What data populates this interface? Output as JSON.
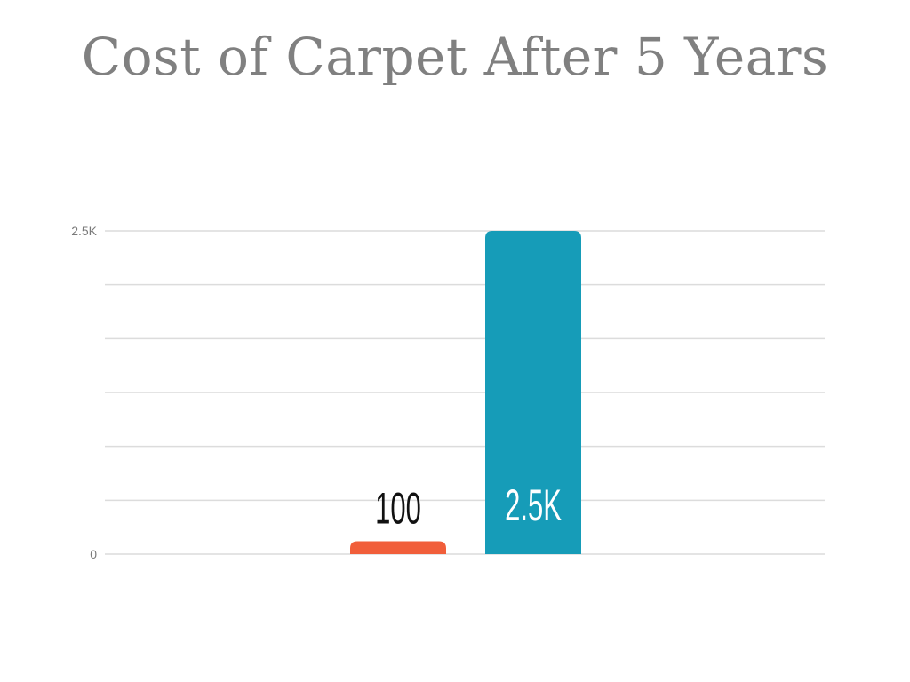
{
  "chart_data": {
    "type": "bar",
    "title": "Cost of Carpet After 5 Years",
    "categories": [
      "",
      ""
    ],
    "values": [
      100,
      2500
    ],
    "data_labels": [
      "100",
      "2.5K"
    ],
    "colors": [
      "#f15e3a",
      "#169cb8"
    ],
    "label_colors": [
      "#111111",
      "#ffffff"
    ],
    "ylim": [
      0,
      2500
    ],
    "y_ticks": [
      {
        "value": 0,
        "label": "0"
      },
      {
        "value": 2500,
        "label": "2.5K"
      }
    ],
    "gridlines": [
      0,
      416.67,
      833.33,
      1250,
      1666.67,
      2083.33,
      2500
    ],
    "grid": true,
    "legend": "none",
    "xlabel": "",
    "ylabel": ""
  }
}
